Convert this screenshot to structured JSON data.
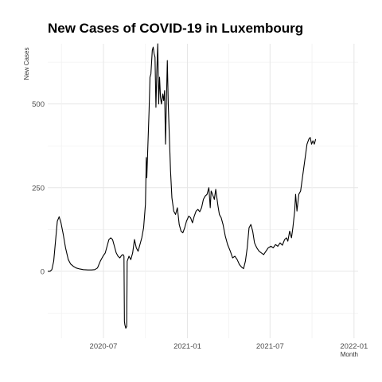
{
  "chart_data": {
    "type": "line",
    "title": "New Cases of COVID-19 in Luxembourg",
    "xlabel": "Month",
    "ylabel": "New Cases",
    "xlim": [
      "2020-03-01",
      "2022-01-10"
    ],
    "ylim": [
      -200,
      680
    ],
    "y_ticks": [
      0,
      250,
      500
    ],
    "x_ticks": [
      {
        "date": "2020-07-01",
        "label": "2020-07"
      },
      {
        "date": "2021-01-01",
        "label": "2021-01"
      },
      {
        "date": "2021-07-01",
        "label": "2021-07"
      },
      {
        "date": "2022-01-01",
        "label": "2022-01"
      }
    ],
    "grid": true,
    "series": [
      {
        "name": "",
        "color": "#000000",
        "points": [
          [
            "2020-03-01",
            0
          ],
          [
            "2020-03-06",
            0
          ],
          [
            "2020-03-10",
            5
          ],
          [
            "2020-03-14",
            30
          ],
          [
            "2020-03-18",
            90
          ],
          [
            "2020-03-22",
            150
          ],
          [
            "2020-03-26",
            163
          ],
          [
            "2020-03-30",
            145
          ],
          [
            "2020-04-04",
            110
          ],
          [
            "2020-04-09",
            70
          ],
          [
            "2020-04-15",
            35
          ],
          [
            "2020-04-20",
            22
          ],
          [
            "2020-04-26",
            15
          ],
          [
            "2020-05-02",
            10
          ],
          [
            "2020-05-10",
            7
          ],
          [
            "2020-05-18",
            5
          ],
          [
            "2020-05-28",
            4
          ],
          [
            "2020-06-05",
            4
          ],
          [
            "2020-06-12",
            5
          ],
          [
            "2020-06-18",
            10
          ],
          [
            "2020-06-24",
            30
          ],
          [
            "2020-06-30",
            45
          ],
          [
            "2020-07-05",
            55
          ],
          [
            "2020-07-09",
            75
          ],
          [
            "2020-07-13",
            95
          ],
          [
            "2020-07-17",
            100
          ],
          [
            "2020-07-21",
            95
          ],
          [
            "2020-07-25",
            75
          ],
          [
            "2020-07-29",
            55
          ],
          [
            "2020-08-02",
            45
          ],
          [
            "2020-08-06",
            40
          ],
          [
            "2020-08-10",
            48
          ],
          [
            "2020-08-13",
            50
          ],
          [
            "2020-08-15",
            45
          ],
          [
            "2020-08-16",
            -150
          ],
          [
            "2020-08-17",
            -160
          ],
          [
            "2020-08-19",
            -170
          ],
          [
            "2020-08-21",
            -165
          ],
          [
            "2020-08-22",
            30
          ],
          [
            "2020-08-26",
            45
          ],
          [
            "2020-08-30",
            35
          ],
          [
            "2020-09-03",
            55
          ],
          [
            "2020-09-07",
            95
          ],
          [
            "2020-09-11",
            70
          ],
          [
            "2020-09-15",
            60
          ],
          [
            "2020-09-19",
            80
          ],
          [
            "2020-09-23",
            100
          ],
          [
            "2020-09-27",
            130
          ],
          [
            "2020-10-01",
            200
          ],
          [
            "2020-10-03",
            340
          ],
          [
            "2020-10-04",
            280
          ],
          [
            "2020-10-06",
            360
          ],
          [
            "2020-10-09",
            480
          ],
          [
            "2020-10-11",
            580
          ],
          [
            "2020-10-13",
            590
          ],
          [
            "2020-10-16",
            660
          ],
          [
            "2020-10-18",
            670
          ],
          [
            "2020-10-20",
            650
          ],
          [
            "2020-10-22",
            640
          ],
          [
            "2020-10-24",
            490
          ],
          [
            "2020-10-26",
            600
          ],
          [
            "2020-10-28",
            680
          ],
          [
            "2020-10-30",
            500
          ],
          [
            "2020-11-01",
            580
          ],
          [
            "2020-11-03",
            520
          ],
          [
            "2020-11-05",
            500
          ],
          [
            "2020-11-08",
            530
          ],
          [
            "2020-11-10",
            510
          ],
          [
            "2020-11-12",
            540
          ],
          [
            "2020-11-14",
            380
          ],
          [
            "2020-11-16",
            510
          ],
          [
            "2020-11-18",
            630
          ],
          [
            "2020-11-20",
            500
          ],
          [
            "2020-11-22",
            420
          ],
          [
            "2020-11-25",
            300
          ],
          [
            "2020-11-28",
            220
          ],
          [
            "2020-12-02",
            180
          ],
          [
            "2020-12-06",
            170
          ],
          [
            "2020-12-10",
            190
          ],
          [
            "2020-12-14",
            140
          ],
          [
            "2020-12-18",
            120
          ],
          [
            "2020-12-22",
            115
          ],
          [
            "2020-12-26",
            130
          ],
          [
            "2020-12-30",
            150
          ],
          [
            "2021-01-04",
            165
          ],
          [
            "2021-01-08",
            160
          ],
          [
            "2021-01-12",
            145
          ],
          [
            "2021-01-16",
            165
          ],
          [
            "2021-01-20",
            180
          ],
          [
            "2021-01-24",
            185
          ],
          [
            "2021-01-28",
            178
          ],
          [
            "2021-02-01",
            190
          ],
          [
            "2021-02-05",
            215
          ],
          [
            "2021-02-09",
            225
          ],
          [
            "2021-02-13",
            230
          ],
          [
            "2021-02-17",
            250
          ],
          [
            "2021-02-20",
            190
          ],
          [
            "2021-02-22",
            240
          ],
          [
            "2021-02-25",
            230
          ],
          [
            "2021-03-01",
            215
          ],
          [
            "2021-03-04",
            245
          ],
          [
            "2021-03-06",
            225
          ],
          [
            "2021-03-09",
            195
          ],
          [
            "2021-03-12",
            170
          ],
          [
            "2021-03-16",
            160
          ],
          [
            "2021-03-20",
            140
          ],
          [
            "2021-03-25",
            105
          ],
          [
            "2021-03-30",
            80
          ],
          [
            "2021-04-05",
            60
          ],
          [
            "2021-04-10",
            40
          ],
          [
            "2021-04-15",
            45
          ],
          [
            "2021-04-20",
            35
          ],
          [
            "2021-04-25",
            20
          ],
          [
            "2021-04-30",
            12
          ],
          [
            "2021-05-04",
            8
          ],
          [
            "2021-05-08",
            30
          ],
          [
            "2021-05-12",
            70
          ],
          [
            "2021-05-16",
            130
          ],
          [
            "2021-05-20",
            140
          ],
          [
            "2021-05-24",
            120
          ],
          [
            "2021-05-28",
            85
          ],
          [
            "2021-06-02",
            70
          ],
          [
            "2021-06-07",
            60
          ],
          [
            "2021-06-12",
            55
          ],
          [
            "2021-06-17",
            50
          ],
          [
            "2021-06-22",
            60
          ],
          [
            "2021-06-27",
            70
          ],
          [
            "2021-07-03",
            75
          ],
          [
            "2021-07-08",
            70
          ],
          [
            "2021-07-13",
            80
          ],
          [
            "2021-07-18",
            75
          ],
          [
            "2021-07-23",
            85
          ],
          [
            "2021-07-28",
            78
          ],
          [
            "2021-08-02",
            95
          ],
          [
            "2021-08-06",
            100
          ],
          [
            "2021-08-09",
            90
          ],
          [
            "2021-08-13",
            120
          ],
          [
            "2021-08-17",
            100
          ],
          [
            "2021-08-20",
            130
          ],
          [
            "2021-08-24",
            180
          ],
          [
            "2021-08-26",
            230
          ],
          [
            "2021-08-29",
            180
          ],
          [
            "2021-09-02",
            230
          ],
          [
            "2021-09-06",
            240
          ],
          [
            "2021-09-10",
            280
          ],
          [
            "2021-09-15",
            330
          ],
          [
            "2021-09-20",
            380
          ],
          [
            "2021-09-24",
            395
          ],
          [
            "2021-09-27",
            400
          ],
          [
            "2021-09-30",
            380
          ],
          [
            "2021-10-03",
            390
          ],
          [
            "2021-10-06",
            380
          ],
          [
            "2021-10-09",
            395
          ]
        ]
      }
    ]
  }
}
